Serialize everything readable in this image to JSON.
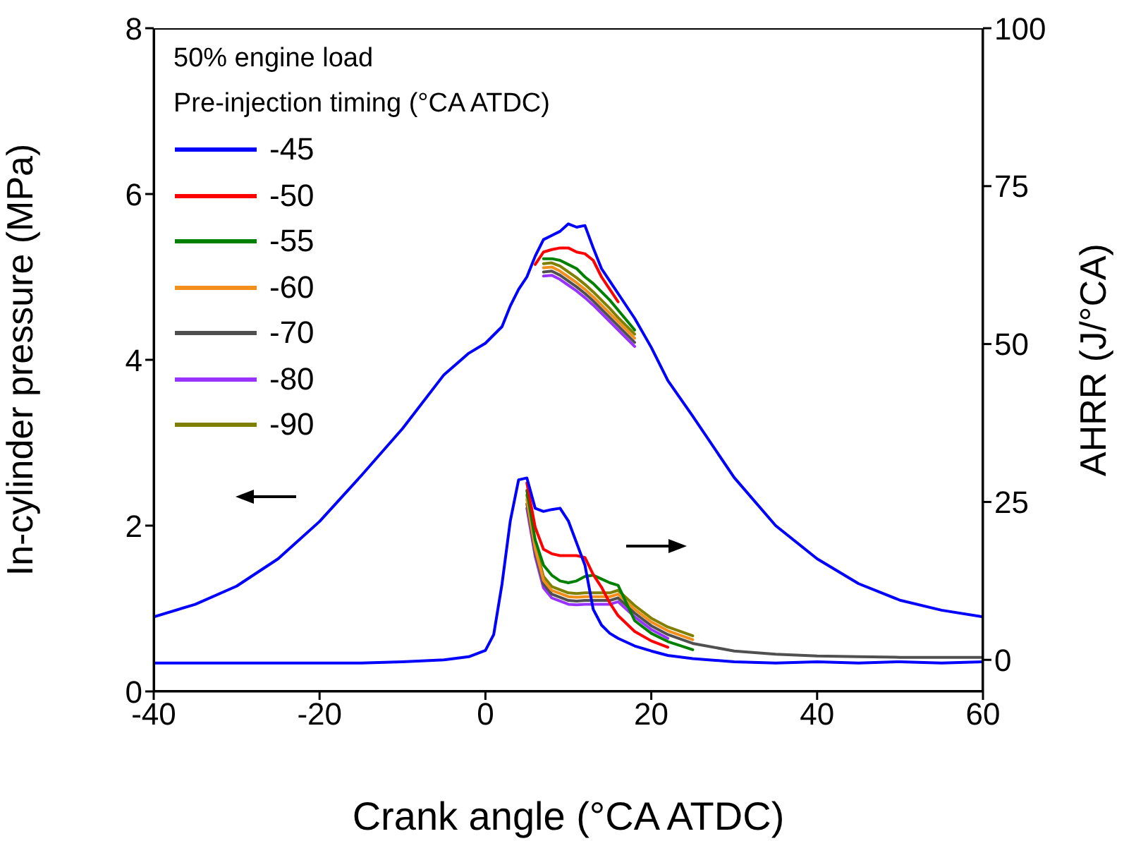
{
  "chart_data": {
    "type": "line",
    "xlabel": "Crank angle (°CA ATDC)",
    "ylabel": "In-cylinder pressure (MPa)",
    "y2label": "AHRR (J/°CA)",
    "legend_title": "Pre-injection timing (°CA ATDC)",
    "annotations": [
      "50% engine load"
    ],
    "legend": "top left",
    "line_style": "solid",
    "xlim": [
      -40,
      60
    ],
    "xticks": [
      -40,
      -20,
      0,
      20,
      40,
      60
    ],
    "ylim": [
      0,
      8
    ],
    "yticks": [
      0,
      2,
      4,
      6,
      8
    ],
    "y2lim": [
      -5,
      100
    ],
    "y2ticks": [
      0,
      25,
      50,
      75,
      100
    ],
    "x": [
      -40,
      -35,
      -30,
      -25,
      -20,
      -15,
      -10,
      -5,
      -2,
      0,
      1,
      2,
      3,
      4,
      5,
      6,
      7,
      8,
      9,
      10,
      11,
      12,
      13,
      14,
      15,
      16,
      18,
      20,
      22,
      25,
      30,
      35,
      40,
      45,
      50,
      55,
      60
    ],
    "series": [
      {
        "name": "-45",
        "color": "#0000ff",
        "values": [
          0.9,
          1.05,
          1.27,
          1.6,
          2.05,
          2.6,
          3.17,
          3.82,
          4.08,
          4.2,
          4.3,
          4.4,
          4.65,
          4.85,
          5.0,
          5.25,
          5.45,
          5.5,
          5.55,
          5.64,
          5.6,
          5.62,
          5.35,
          5.1,
          4.95,
          4.8,
          4.5,
          4.15,
          3.75,
          3.32,
          2.58,
          2.0,
          1.6,
          1.3,
          1.1,
          0.98,
          0.9
        ]
      },
      {
        "name": "-50",
        "color": "#ff0000",
        "values": [
          null,
          null,
          null,
          null,
          null,
          null,
          null,
          null,
          null,
          null,
          null,
          null,
          null,
          null,
          null,
          5.15,
          5.3,
          5.33,
          5.35,
          5.35,
          5.3,
          5.28,
          5.2,
          5.0,
          4.85,
          4.7,
          null,
          null,
          null,
          null,
          null,
          null,
          null,
          null,
          null,
          null,
          null
        ]
      },
      {
        "name": "-55",
        "color": "#008000",
        "values": [
          null,
          null,
          null,
          null,
          null,
          null,
          null,
          null,
          null,
          null,
          null,
          null,
          null,
          null,
          null,
          null,
          5.22,
          5.22,
          5.2,
          5.15,
          5.1,
          5.0,
          4.92,
          4.82,
          4.72,
          4.6,
          4.36,
          null,
          null,
          null,
          null,
          null,
          null,
          null,
          null,
          null,
          null
        ]
      },
      {
        "name": "-60",
        "color": "#f28e1c",
        "values": [
          null,
          null,
          null,
          null,
          null,
          null,
          null,
          null,
          null,
          null,
          null,
          null,
          null,
          null,
          null,
          null,
          5.11,
          5.12,
          5.07,
          5.0,
          4.93,
          4.85,
          4.76,
          4.66,
          4.56,
          4.46,
          4.26,
          null,
          null,
          null,
          null,
          null,
          null,
          null,
          null,
          null,
          null
        ]
      },
      {
        "name": "-70",
        "color": "#505050",
        "values": [
          null,
          null,
          null,
          null,
          null,
          null,
          null,
          null,
          null,
          null,
          null,
          null,
          null,
          null,
          null,
          null,
          5.06,
          5.07,
          5.02,
          4.95,
          4.88,
          4.8,
          4.71,
          4.61,
          4.51,
          4.41,
          4.21,
          null,
          null,
          null,
          null,
          null,
          null,
          null,
          null,
          null,
          null
        ]
      },
      {
        "name": "-80",
        "color": "#9933ff",
        "values": [
          null,
          null,
          null,
          null,
          null,
          null,
          null,
          null,
          null,
          null,
          null,
          null,
          null,
          null,
          null,
          null,
          5.01,
          5.02,
          4.97,
          4.9,
          4.83,
          4.75,
          4.66,
          4.56,
          4.46,
          4.36,
          4.16,
          null,
          null,
          null,
          null,
          null,
          null,
          null,
          null,
          null,
          null
        ]
      },
      {
        "name": "-90",
        "color": "#808000",
        "values": [
          null,
          null,
          null,
          null,
          null,
          null,
          null,
          null,
          null,
          null,
          null,
          null,
          null,
          null,
          null,
          null,
          5.16,
          5.17,
          5.13,
          5.06,
          4.99,
          4.91,
          4.82,
          4.72,
          4.62,
          4.51,
          4.31,
          null,
          null,
          null,
          null,
          null,
          null,
          null,
          null,
          null,
          null
        ]
      },
      {
        "axis": "y2",
        "color": "#0000ff",
        "values": [
          -0.5,
          -0.5,
          -0.5,
          -0.5,
          -0.5,
          -0.5,
          -0.3,
          0,
          0.5,
          1.5,
          4,
          12,
          22,
          28.5,
          28.8,
          24,
          23.5,
          23.8,
          24,
          22,
          18.5,
          15,
          8,
          5.5,
          4.2,
          3.4,
          2.2,
          1.4,
          0.7,
          0.2,
          -0.3,
          -0.5,
          -0.3,
          -0.5,
          -0.3,
          -0.5,
          -0.3
        ]
      },
      {
        "axis": "y2",
        "color": "#ff0000",
        "values": [
          null,
          null,
          null,
          null,
          null,
          null,
          null,
          null,
          null,
          null,
          null,
          null,
          null,
          null,
          28,
          21,
          17.5,
          16.8,
          16.5,
          16.5,
          16.5,
          16.2,
          13.5,
          11.5,
          9,
          7,
          4.5,
          3,
          2,
          null,
          null,
          null,
          null,
          null,
          null,
          null,
          null
        ]
      },
      {
        "axis": "y2",
        "color": "#008000",
        "values": [
          null,
          null,
          null,
          null,
          null,
          null,
          null,
          null,
          null,
          null,
          null,
          null,
          null,
          null,
          26.8,
          19,
          15,
          13.4,
          12.5,
          12.2,
          12.5,
          13.2,
          13.4,
          12.8,
          12.2,
          11.8,
          6.2,
          4.2,
          2.9,
          1.6,
          null,
          null,
          null,
          null,
          null,
          null,
          null
        ]
      },
      {
        "axis": "y2",
        "color": "#f28e1c",
        "values": [
          null,
          null,
          null,
          null,
          null,
          null,
          null,
          null,
          null,
          null,
          null,
          null,
          null,
          null,
          25.4,
          17.6,
          12.6,
          11.0,
          10.5,
          10.0,
          9.9,
          10.0,
          10.0,
          10.0,
          10.0,
          10.4,
          8.0,
          6.0,
          4.6,
          3.2,
          null,
          null,
          null,
          null,
          null,
          null,
          null
        ]
      },
      {
        "axis": "y2",
        "color": "#505050",
        "values": [
          null,
          null,
          null,
          null,
          null,
          null,
          null,
          null,
          null,
          null,
          null,
          null,
          null,
          null,
          24.7,
          17.0,
          12.0,
          10.4,
          9.9,
          9.4,
          9.3,
          9.4,
          9.4,
          9.4,
          9.4,
          9.8,
          7.4,
          5.4,
          4.0,
          2.6,
          1.4,
          0.9,
          0.6,
          0.5,
          0.4,
          0.4,
          0.4
        ]
      },
      {
        "axis": "y2",
        "color": "#9933ff",
        "values": [
          null,
          null,
          null,
          null,
          null,
          null,
          null,
          null,
          null,
          null,
          null,
          null,
          null,
          null,
          24.0,
          16.4,
          11.4,
          9.8,
          9.3,
          8.8,
          8.7,
          8.8,
          8.8,
          8.8,
          8.8,
          9.2,
          6.8,
          4.8,
          3.4,
          null,
          null,
          null,
          null,
          null,
          null,
          null,
          null
        ]
      },
      {
        "axis": "y2",
        "color": "#808000",
        "values": [
          null,
          null,
          null,
          null,
          null,
          null,
          null,
          null,
          null,
          null,
          null,
          null,
          null,
          null,
          26.1,
          18.2,
          13.2,
          11.6,
          11.1,
          10.6,
          10.5,
          10.6,
          10.6,
          10.6,
          10.6,
          11.0,
          8.6,
          6.6,
          5.2,
          3.8,
          null,
          null,
          null,
          null,
          null,
          null,
          null
        ]
      }
    ]
  }
}
